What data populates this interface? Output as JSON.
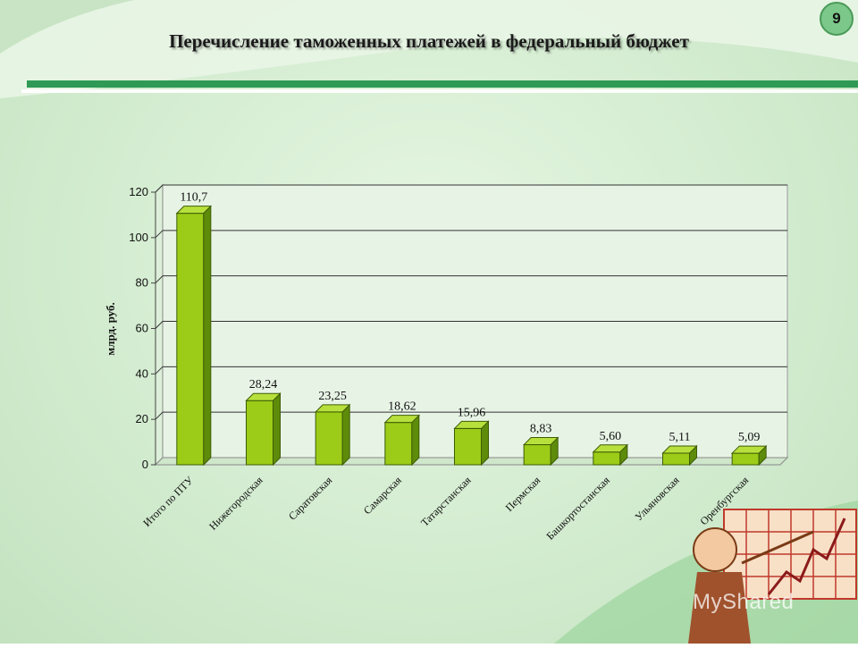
{
  "slide": {
    "title": "Перечисление таможенных платежей в федеральный бюджет",
    "page_number": "9",
    "watermark": "MyShared"
  },
  "colors": {
    "accent_bar": "#2e9a55",
    "bar_front": "#9ccc17",
    "bar_side": "#5e8c0a",
    "bar_top": "#b8e03c"
  },
  "chart_data": {
    "type": "bar",
    "title": "",
    "xlabel": "",
    "ylabel": "млрд. руб.",
    "ylim": [
      0,
      120
    ],
    "yticks": [
      0,
      20,
      40,
      60,
      80,
      100,
      120
    ],
    "grid": true,
    "categories": [
      "Итого по ПТУ",
      "Нижегородская",
      "Саратовская",
      "Самарская",
      "Татарстанская",
      "Пермская",
      "Башкортостанская",
      "Ульяновская",
      "Оренбургская"
    ],
    "values": [
      110.7,
      28.24,
      23.25,
      18.62,
      15.96,
      8.83,
      5.6,
      5.11,
      5.09
    ],
    "value_labels": [
      "110,7",
      "28,24",
      "23,25",
      "18,62",
      "15,96",
      "8,83",
      "5,60",
      "5,11",
      "5,09"
    ]
  }
}
